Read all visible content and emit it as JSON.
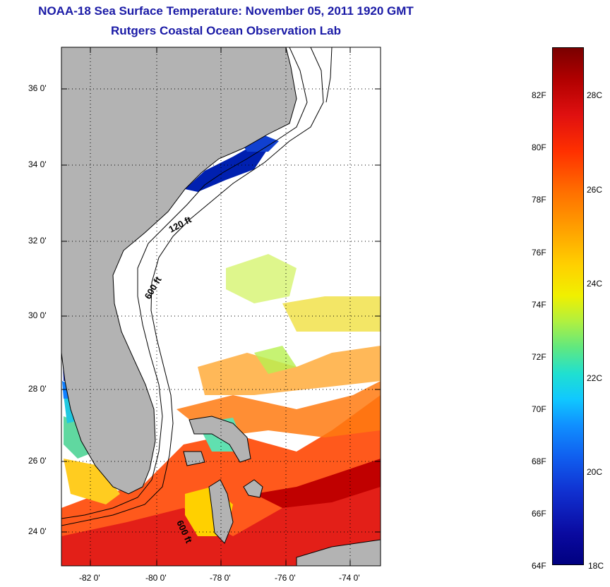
{
  "title": {
    "line1": "NOAA-18 Sea Surface Temperature:  November 05, 2011 1920 GMT",
    "line2": "Rutgers Coastal Ocean Observation Lab"
  },
  "map": {
    "lat_labels": [
      "36 0'",
      "34 0'",
      "32 0'",
      "30 0'",
      "28 0'",
      "26 0'",
      "24 0'"
    ],
    "lon_labels": [
      "-82 0'",
      "-80 0'",
      "-78 0'",
      "-76 0'",
      "-74 0'"
    ],
    "contour_labels": [
      "120 ft",
      "600 ft",
      "600 ft"
    ],
    "colors": {
      "land": "#b3b3b3",
      "ocean_nodata": "#ffffff",
      "warm": "#ff4a00",
      "hot": "#e01010",
      "mid": "#ffd000",
      "cool": "#90e040",
      "cold": "#0020b0"
    }
  },
  "colorbar": {
    "fahrenheit": [
      "82F",
      "80F",
      "78F",
      "76F",
      "74F",
      "72F",
      "70F",
      "68F",
      "66F",
      "64F"
    ],
    "celsius": [
      "28C",
      "26C",
      "24C",
      "22C",
      "20C",
      "18C"
    ]
  }
}
